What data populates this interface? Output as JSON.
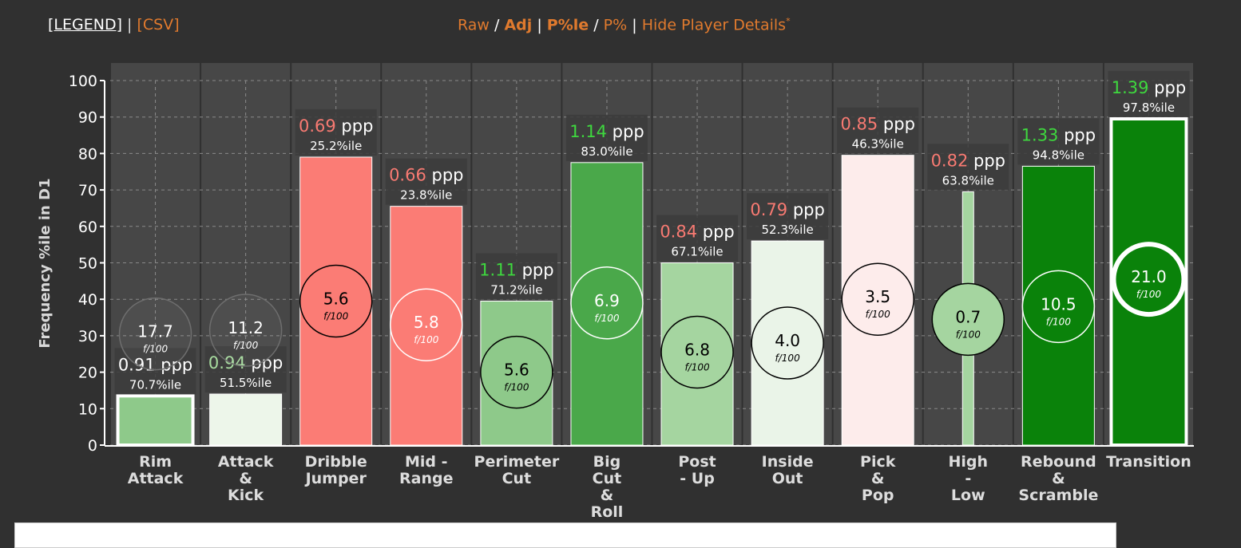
{
  "header": {
    "legend_label": "[LEGEND]",
    "separator": " | ",
    "csv_label": "[CSV]",
    "options": [
      "Raw",
      "Adj",
      "P%le",
      "P%",
      "Hide Player Details"
    ],
    "asterisk": "*"
  },
  "chart_data": {
    "type": "bar",
    "ylabel": "Frequency %ile in D1",
    "ylim": [
      0,
      100
    ],
    "yticks": [
      0,
      10,
      20,
      30,
      40,
      50,
      60,
      70,
      80,
      90,
      100
    ],
    "grid": true,
    "ppp_unit": "ppp",
    "pctile_suffix": "%ile",
    "freq_unit": "f/100",
    "categories": [
      {
        "label": [
          "Rim",
          "Attack"
        ],
        "freq_pctile": 13.5,
        "ppp": "0.91",
        "ppp_color": "#ffffff",
        "ppp_pctile": "70.7",
        "freq": "17.7",
        "bar_color": "#8ec98a",
        "circle_color": "transparent",
        "circle_value": 30.5,
        "circle_text": "#ffffff",
        "outlined": true
      },
      {
        "label": [
          "Attack",
          "&",
          "Kick"
        ],
        "freq_pctile": 14,
        "ppp": "0.94",
        "ppp_color": "#a8dca0",
        "ppp_pctile": "51.5",
        "freq": "11.2",
        "bar_color": "#edf6ea",
        "circle_color": "transparent",
        "circle_value": 31.5,
        "circle_text": "#ffffff",
        "outlined": false
      },
      {
        "label": [
          "Dribble",
          "Jumper"
        ],
        "freq_pctile": 79,
        "ppp": "0.69",
        "ppp_color": "#f87a72",
        "ppp_pctile": "25.2",
        "freq": "5.6",
        "bar_color": "#fb7c75",
        "circle_color": "#fb7c75",
        "circle_value": 39.5,
        "circle_text": "#000000",
        "outlined": false
      },
      {
        "label": [
          "Mid -",
          "Range"
        ],
        "freq_pctile": 65.5,
        "ppp": "0.66",
        "ppp_color": "#f87a72",
        "ppp_pctile": "23.8",
        "freq": "5.8",
        "bar_color": "#fb7c75",
        "circle_color": "#fb7c75",
        "circle_value": 33,
        "circle_text": "#ffffff",
        "outlined": false
      },
      {
        "label": [
          "Perimeter",
          "Cut"
        ],
        "freq_pctile": 39.5,
        "ppp": "1.11",
        "ppp_color": "#3ed83e",
        "ppp_pctile": "71.2",
        "freq": "5.6",
        "bar_color": "#8ec98a",
        "circle_color": "#8ec98a",
        "circle_value": 20,
        "circle_text": "#000000",
        "outlined": false
      },
      {
        "label": [
          "Big",
          "Cut",
          "&",
          "Roll"
        ],
        "freq_pctile": 77.5,
        "ppp": "1.14",
        "ppp_color": "#3ed83e",
        "ppp_pctile": "83.0",
        "freq": "6.9",
        "bar_color": "#4aa84a",
        "circle_color": "#4aa84a",
        "circle_value": 39,
        "circle_text": "#ffffff",
        "outlined": false
      },
      {
        "label": [
          "Post",
          "- Up"
        ],
        "freq_pctile": 50,
        "ppp": "0.84",
        "ppp_color": "#f87a72",
        "ppp_pctile": "67.1",
        "freq": "6.8",
        "bar_color": "#a5d5a0",
        "circle_color": "#a5d5a0",
        "circle_value": 25.5,
        "circle_text": "#000000",
        "outlined": false
      },
      {
        "label": [
          "Inside",
          "Out"
        ],
        "freq_pctile": 56,
        "ppp": "0.79",
        "ppp_color": "#f87a72",
        "ppp_pctile": "52.3",
        "freq": "4.0",
        "bar_color": "#eaf4e8",
        "circle_color": "#eaf4e8",
        "circle_value": 28,
        "circle_text": "#000000",
        "outlined": false
      },
      {
        "label": [
          "Pick",
          "&",
          "Pop"
        ],
        "freq_pctile": 79.5,
        "ppp": "0.85",
        "ppp_color": "#f87a72",
        "ppp_pctile": "46.3",
        "freq": "3.5",
        "bar_color": "#fdeceb",
        "circle_color": "#fdeceb",
        "circle_value": 40,
        "circle_text": "#000000",
        "outlined": false
      },
      {
        "label": [
          "High",
          "-",
          "Low"
        ],
        "freq_pctile": 69.5,
        "ppp": "0.82",
        "ppp_color": "#f87a72",
        "ppp_pctile": "63.8",
        "freq": "0.7",
        "bar_color": "#a5d5a0",
        "circle_color": "#a5d5a0",
        "circle_value": 34.5,
        "circle_text": "#000000",
        "outlined": false,
        "narrow": true
      },
      {
        "label": [
          "Rebound",
          "&",
          "Scramble"
        ],
        "freq_pctile": 76.5,
        "ppp": "1.33",
        "ppp_color": "#3ed83e",
        "ppp_pctile": "94.8",
        "freq": "10.5",
        "bar_color": "#0a820a",
        "circle_color": "#0a820a",
        "circle_value": 38,
        "circle_text": "#ffffff",
        "outlined": false
      },
      {
        "label": [
          "Transition"
        ],
        "freq_pctile": 89.5,
        "ppp": "1.39",
        "ppp_color": "#3ed83e",
        "ppp_pctile": "97.8",
        "freq": "21.0",
        "bar_color": "#0a820a",
        "circle_color": "#0a820a",
        "circle_value": 45.5,
        "circle_text": "#ffffff",
        "outlined": true
      }
    ]
  }
}
